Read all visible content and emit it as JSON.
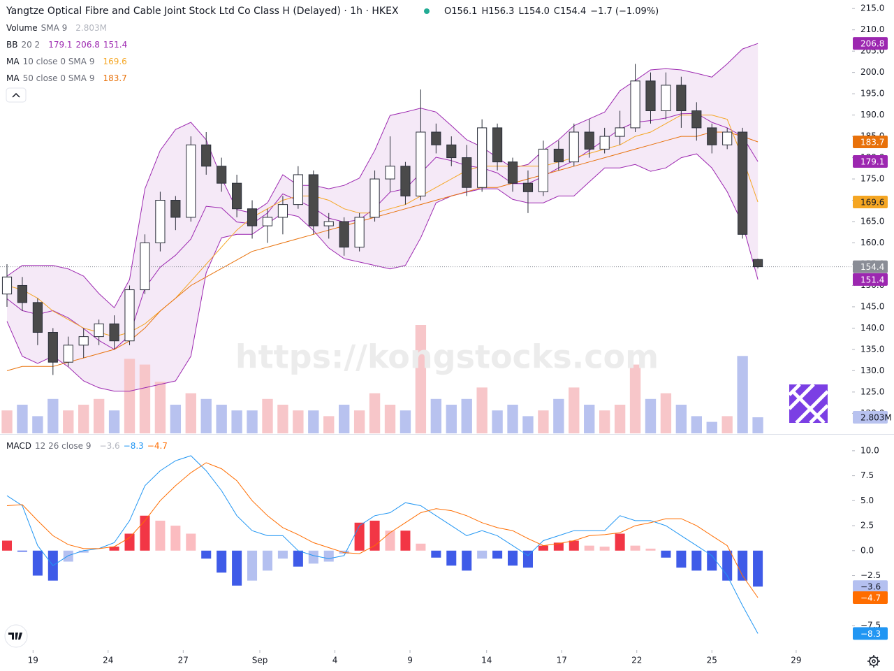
{
  "chart_data": [
    {
      "type": "candlestick",
      "title": "Yangtze Optical Fibre and Cable Joint Stock Ltd Co Class H (Delayed) · 1h · HKEX",
      "quote": [
        "O156.1",
        "H156.3",
        "L154.0",
        "C154.4",
        "−1.7 (−1.09%)"
      ],
      "legend": [
        {
          "label": "Volume",
          "params": "SMA 9"
        },
        {
          "label": "BB",
          "params": "20 2"
        },
        {
          "label": "MA",
          "params": "10 close 0 SMA 9"
        },
        {
          "label": "MA",
          "params": "50 close 0 SMA 9"
        }
      ],
      "watermark": "https://kongstocks.com",
      "xlim": [
        -0.456,
        55.15
      ],
      "ylim": [
        115.3,
        217
      ],
      "yticks": [
        {
          "value": 120,
          "label": "120.0"
        },
        {
          "value": 125,
          "label": "125.0"
        },
        {
          "value": 130,
          "label": "130.0"
        },
        {
          "value": 135,
          "label": "135.0"
        },
        {
          "value": 140,
          "label": "140.0"
        },
        {
          "value": 145,
          "label": "145.0"
        },
        {
          "value": 150,
          "label": "150.0"
        },
        {
          "value": 155,
          "label": "155.0"
        },
        {
          "value": 160,
          "label": "160.0"
        },
        {
          "value": 165,
          "label": "165.0"
        },
        {
          "value": 170,
          "label": "170.0"
        },
        {
          "value": 175,
          "label": "175.0"
        },
        {
          "value": 180,
          "label": "180.0"
        },
        {
          "value": 185,
          "label": "185.0"
        },
        {
          "value": 190,
          "label": "190.0"
        },
        {
          "value": 195,
          "label": "195.0"
        },
        {
          "value": 200,
          "label": "200.0"
        },
        {
          "value": 205,
          "label": "205.0"
        },
        {
          "value": 210,
          "label": "210.0"
        },
        {
          "value": 215,
          "label": "215.0"
        }
      ],
      "ohlc": {
        "open": [
          148,
          150,
          146,
          139,
          132,
          136,
          138,
          141,
          137,
          149,
          160,
          170,
          166,
          183,
          178,
          174,
          168,
          164,
          166,
          169,
          176,
          164,
          165,
          159,
          166,
          175,
          178,
          171,
          186,
          183,
          180,
          173,
          187,
          179,
          174,
          172,
          182,
          179,
          186,
          182,
          185,
          187,
          198,
          191,
          197,
          191,
          187,
          183,
          186,
          156.1
        ],
        "high": [
          155,
          152,
          147,
          140,
          138,
          140,
          142,
          143,
          150,
          162,
          172,
          171,
          185,
          186,
          180,
          176,
          170,
          168,
          171,
          178,
          177,
          167,
          166,
          167,
          177,
          185,
          179,
          196,
          188,
          185,
          183,
          189,
          188,
          180,
          177,
          184,
          184,
          188,
          189,
          187,
          191,
          202,
          200,
          200,
          199,
          193,
          188,
          187,
          187,
          156.3
        ],
        "low": [
          145,
          144,
          136,
          129,
          131,
          133,
          136,
          135,
          136,
          148,
          158,
          163,
          165,
          176,
          172,
          166,
          161,
          160,
          162,
          168,
          162,
          161,
          157,
          158,
          165,
          172,
          169,
          170,
          181,
          178,
          171,
          172,
          177,
          172,
          167,
          171,
          177,
          178,
          180,
          181,
          183,
          186,
          188,
          189,
          187,
          184,
          181,
          182,
          161,
          154.0
        ],
        "close": [
          152,
          146,
          139,
          132,
          136,
          138,
          141,
          137,
          149,
          160,
          170,
          166,
          183,
          178,
          174,
          168,
          164,
          166,
          169,
          176,
          164,
          165,
          159,
          166,
          175,
          178,
          171,
          186,
          183,
          180,
          173,
          187,
          179,
          174,
          172,
          182,
          179,
          186,
          182,
          185,
          187,
          198,
          191,
          197,
          191,
          187,
          183,
          186,
          162,
          154.4
        ],
        "up_color": "#ffffff",
        "down_color": "#4a4a4a",
        "wick_color": "#2a2e39"
      },
      "volume": {
        "values": [
          4,
          5,
          3,
          6,
          4,
          5,
          6,
          4,
          13,
          12,
          9,
          5,
          7,
          6,
          5,
          4,
          4,
          6,
          5,
          4,
          4,
          3,
          5,
          4,
          7,
          5,
          4,
          18.9,
          6,
          5,
          6,
          8,
          4,
          5,
          3,
          4,
          6,
          8,
          5,
          4,
          5,
          12,
          6,
          7,
          5,
          3,
          2,
          3,
          13.5,
          2.803
        ],
        "value_labels": [
          null,
          null,
          null,
          null,
          null,
          null,
          null,
          null,
          null,
          null,
          null,
          null,
          null,
          null,
          null,
          null,
          null,
          null,
          null,
          null,
          null,
          null,
          null,
          null,
          null,
          null,
          null,
          null,
          null,
          null,
          null,
          null,
          null,
          null,
          null,
          null,
          null,
          null,
          null,
          null,
          null,
          null,
          null,
          null,
          null,
          null,
          null,
          null,
          null,
          "2.803M"
        ],
        "ylim": [
          0,
          75.6
        ],
        "up_color": "#f7c6c9",
        "down_color": "#b8c2ef",
        "legend_color": "#b2b5be"
      },
      "bb": {
        "upper": [
          152.2,
          154.7,
          154.7,
          154.7,
          153.9,
          152.2,
          148.1,
          144.8,
          151.4,
          172.7,
          181.7,
          186.6,
          188.3,
          184.2,
          175.2,
          167.8,
          167,
          169.4,
          176,
          173.5,
          173.5,
          172.7,
          173.5,
          175.2,
          181.7,
          189.9,
          190.7,
          191.6,
          190.7,
          187.5,
          184.2,
          182.5,
          180,
          177.6,
          178.4,
          181.7,
          184.2,
          187.5,
          189.1,
          190.7,
          195.7,
          198.1,
          200.6,
          200.9,
          200.6,
          199.8,
          198.9,
          202,
          205.5,
          206.8
        ],
        "basis": [
          146.9,
          144.1,
          143.2,
          144.1,
          142.4,
          139.9,
          137.1,
          135,
          138.3,
          149.4,
          154.3,
          157.1,
          160.9,
          168.6,
          168.2,
          164.9,
          164.5,
          167,
          171.5,
          169.9,
          168.2,
          165.8,
          164.9,
          165.4,
          168.2,
          171.9,
          172.7,
          176.4,
          180.1,
          179.3,
          178.1,
          177.6,
          176.4,
          173.9,
          173.9,
          175.6,
          177.6,
          179.3,
          181.7,
          184.2,
          186.7,
          188.3,
          188.7,
          189.3,
          190.3,
          190.4,
          188.3,
          187,
          185,
          179.1
        ],
        "lower": [
          141.6,
          133.4,
          131.7,
          133.4,
          130.9,
          127.6,
          126,
          125.2,
          125.2,
          126,
          126.8,
          127.6,
          133.4,
          153,
          161.2,
          162,
          162,
          164.5,
          167,
          166.2,
          162.9,
          158.8,
          156.3,
          155.5,
          154.7,
          153.9,
          154.7,
          161.2,
          169.4,
          171,
          171.9,
          172.7,
          172.7,
          170.2,
          169.4,
          169.4,
          171,
          171,
          174.3,
          177.6,
          177.6,
          178.4,
          176.8,
          177.6,
          180,
          180.9,
          177.6,
          172,
          164.5,
          151.4
        ],
        "color": "#9c27b0",
        "fill": "#9c27b0"
      },
      "ma10": {
        "values": [
          150,
          149,
          147,
          144,
          142,
          140,
          139,
          138,
          139,
          141,
          144,
          147,
          151,
          155,
          159,
          163,
          166,
          168,
          170,
          171,
          171,
          170,
          168,
          167,
          167,
          168,
          169,
          171,
          173,
          175,
          177,
          178,
          178,
          178,
          178,
          178,
          179,
          180,
          181,
          182,
          183,
          185,
          186,
          188,
          190,
          190,
          190,
          189,
          180,
          169.6
        ],
        "color": "#f5a623"
      },
      "ma50": {
        "values": [
          130,
          131,
          131,
          131,
          132,
          133,
          134,
          135,
          137,
          140,
          144,
          147,
          150,
          152,
          154,
          156,
          158,
          159,
          160,
          161,
          162,
          163,
          164,
          165,
          166,
          167,
          168,
          169,
          170,
          171,
          172,
          173,
          173,
          174,
          175,
          176,
          177,
          178,
          179,
          180,
          181,
          182,
          183,
          184,
          185,
          185,
          186,
          186,
          185,
          183.7
        ],
        "color": "#e8710a"
      },
      "last_price_color": "#8a8d96"
    },
    {
      "type": "macd",
      "legend": {
        "label": "MACD",
        "params": "12 26 close 9"
      },
      "xlim": [
        -0.456,
        55.15
      ],
      "xticks": [
        {
          "value": 1.7,
          "label": "19"
        },
        {
          "value": 6.6,
          "label": "24"
        },
        {
          "value": 11.5,
          "label": "27"
        },
        {
          "value": 16.5,
          "label": "Sep"
        },
        {
          "value": 21.4,
          "label": "4"
        },
        {
          "value": 26.3,
          "label": "9"
        },
        {
          "value": 31.3,
          "label": "14"
        },
        {
          "value": 36.2,
          "label": "17"
        },
        {
          "value": 41.1,
          "label": "22"
        },
        {
          "value": 46.0,
          "label": "25"
        },
        {
          "value": 51.5,
          "label": "29"
        }
      ],
      "ylim": [
        -9.95,
        11.6
      ],
      "yticks": [
        {
          "value": 10,
          "label": "10.0"
        },
        7.5,
        {
          "value": 5,
          "label": "5.0"
        },
        2.5,
        {
          "value": 0,
          "label": "0.0"
        },
        {
          "value": -2.5,
          "label": "−2.5"
        },
        {
          "value": -7.5,
          "label": "−7.5"
        }
      ],
      "histogram": {
        "values": [
          1.0,
          -0.1,
          -2.5,
          -3.0,
          -1.1,
          -0.2,
          0,
          0.4,
          1.7,
          3.5,
          3.0,
          2.5,
          1.7,
          -0.8,
          -2.2,
          -3.5,
          -3.0,
          -2.0,
          -0.8,
          -1.6,
          -1.3,
          -1.1,
          -0.3,
          2.8,
          3.0,
          2.0,
          2.0,
          0.7,
          -0.7,
          -1.5,
          -2.0,
          -0.8,
          -0.8,
          -1.5,
          -1.7,
          0.5,
          0.8,
          1.0,
          0.5,
          0.4,
          1.7,
          0.5,
          0.2,
          -0.7,
          -1.7,
          -2.0,
          -2.0,
          -3.0,
          -3.0,
          -3.6
        ],
        "value_labels": [
          null,
          null,
          null,
          null,
          null,
          null,
          null,
          null,
          null,
          null,
          null,
          null,
          null,
          null,
          null,
          null,
          null,
          null,
          null,
          null,
          null,
          null,
          null,
          null,
          null,
          null,
          null,
          null,
          null,
          null,
          null,
          null,
          null,
          null,
          null,
          null,
          null,
          null,
          null,
          null,
          null,
          null,
          null,
          null,
          null,
          null,
          null,
          null,
          null,
          "−3.6"
        ],
        "colors": {
          "pos_rise": "#f23645",
          "pos_fall": "#fbbcc0",
          "neg_fall": "#3f5be8",
          "neg_rise": "#b4c0f0"
        }
      },
      "macd": {
        "values": [
          5.5,
          4.5,
          0.5,
          -1.5,
          -0.5,
          0,
          0.2,
          0.8,
          3,
          6.5,
          8,
          9,
          9.5,
          8,
          6,
          3.5,
          2,
          1.5,
          1.5,
          0,
          -0.5,
          -0.8,
          -0.5,
          2.5,
          3.5,
          3.8,
          4.8,
          4.5,
          3.5,
          2.5,
          1.5,
          2.0,
          1.5,
          0.5,
          -0.5,
          1.0,
          1.5,
          2.0,
          2.0,
          2.0,
          3.5,
          3.0,
          3.0,
          2.5,
          1.5,
          0.5,
          -0.5,
          -2.5,
          -5.5,
          -8.3
        ],
        "value_labels": [
          null,
          null,
          null,
          null,
          null,
          null,
          null,
          null,
          null,
          null,
          null,
          null,
          null,
          null,
          null,
          null,
          null,
          null,
          null,
          null,
          null,
          null,
          null,
          null,
          null,
          null,
          null,
          null,
          null,
          null,
          null,
          null,
          null,
          null,
          null,
          null,
          null,
          null,
          null,
          null,
          null,
          null,
          null,
          null,
          null,
          null,
          null,
          null,
          null,
          "−8.3"
        ],
        "color": "#2196f3"
      },
      "signal": {
        "values": [
          4.5,
          4.6,
          3,
          1.5,
          0.6,
          0.2,
          0.2,
          0.4,
          1.3,
          3,
          5,
          6.5,
          7.8,
          8.8,
          8.2,
          7,
          5,
          3.5,
          2.3,
          1.6,
          0.8,
          0.3,
          -0.2,
          -0.3,
          0.5,
          1.8,
          2.8,
          3.8,
          4.2,
          4,
          3.5,
          2.8,
          2.3,
          2.0,
          1.2,
          0.5,
          0.7,
          1.0,
          1.5,
          1.6,
          1.8,
          2.5,
          2.8,
          3.2,
          3.2,
          2.5,
          1.5,
          0.5,
          -2.5,
          -4.7
        ],
        "value_labels": [
          null,
          null,
          null,
          null,
          null,
          null,
          null,
          null,
          null,
          null,
          null,
          null,
          null,
          null,
          null,
          null,
          null,
          null,
          null,
          null,
          null,
          null,
          null,
          null,
          null,
          null,
          null,
          null,
          null,
          null,
          null,
          null,
          null,
          null,
          null,
          null,
          null,
          null,
          null,
          null,
          null,
          null,
          null,
          null,
          null,
          null,
          null,
          null,
          null,
          "−4.7"
        ],
        "color": "#ff6d00"
      }
    }
  ]
}
